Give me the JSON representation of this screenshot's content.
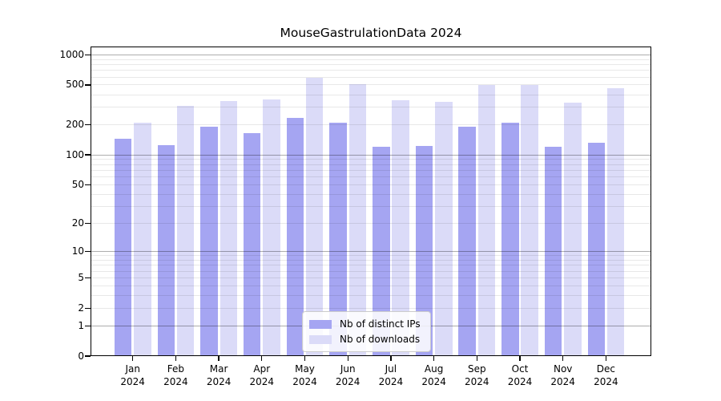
{
  "chart_data": {
    "type": "bar",
    "title": "MouseGastrulationData 2024",
    "categories": [
      "Jan",
      "Feb",
      "Mar",
      "Apr",
      "May",
      "Jun",
      "Jul",
      "Aug",
      "Sep",
      "Oct",
      "Nov",
      "Dec"
    ],
    "category_year": "2024",
    "series": [
      {
        "name": "Nb of distinct IPs",
        "color": "#a5a5f2",
        "values": [
          145,
          126,
          190,
          165,
          235,
          210,
          121,
          123,
          192,
          210,
          121,
          131
        ]
      },
      {
        "name": "Nb of downloads",
        "color": "#dbdbf8",
        "values": [
          210,
          310,
          345,
          360,
          585,
          510,
          350,
          337,
          495,
          500,
          333,
          465
        ]
      }
    ],
    "yscale": "log1p",
    "ylim": [
      0,
      1200
    ],
    "yticks": [
      1000,
      500,
      200,
      100,
      50,
      20,
      10,
      5,
      2,
      1,
      0
    ],
    "xlabel": "",
    "ylabel": "",
    "grid": "on",
    "legend_position": "lower center"
  }
}
